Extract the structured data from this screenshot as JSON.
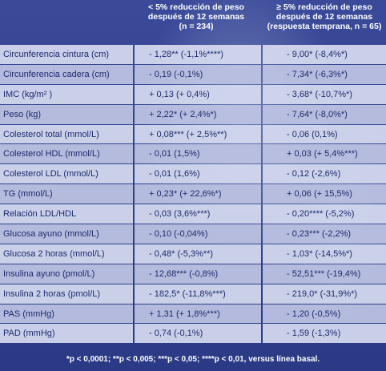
{
  "header": {
    "col1_line1": "< 5% reducción de peso",
    "col1_line2": "después de 12 semanas",
    "col1_line3": "(n = 234)",
    "col2_line1": "≥ 5% reducción de peso",
    "col2_line2": "después de 12 semanas",
    "col2_line3": "(respuesta temprana, n = 65)"
  },
  "rows": [
    {
      "label": "Circunferencia cintura (cm)",
      "v1": "- 1,28** (-1,1%****)",
      "v2": "- 9,00* (-8,4%*)"
    },
    {
      "label": "Circunferencia cadera (cm)",
      "v1": "- 0,19 (-0,1%)",
      "v2": "- 7,34* (-6,3%*)"
    },
    {
      "label": "IMC (kg/m² )",
      "v1": "+ 0,13 (+ 0,4%)",
      "v2": "- 3,68* (-10,7%*)"
    },
    {
      "label": "Peso (kg)",
      "v1": "+ 2,22* (+ 2,4%*)",
      "v2": "- 7,64* (-8,0%*)"
    },
    {
      "label": "Colesterol total (mmol/L)",
      "v1": "+ 0,08*** (+ 2,5%**)",
      "v2": "- 0,06 (0,1%)"
    },
    {
      "label": "Colesterol HDL (mmol/L)",
      "v1": "- 0,01 (1,5%)",
      "v2": "+ 0,03 (+ 5,4%***)"
    },
    {
      "label": "Colesterol LDL (mmol/L)",
      "v1": "- 0,01 (1,6%)",
      "v2": "- 0,12 (-2,6%)"
    },
    {
      "label": "TG (mmol/L)",
      "v1": "+ 0,23* (+ 22,6%*)",
      "v2": "+ 0,06 (+ 15,5%)"
    },
    {
      "label": "Relación LDL/HDL",
      "v1": "- 0,03 (3,6%***)",
      "v2": "- 0,20**** (-5,2%)"
    },
    {
      "label": "Glucosa ayuno (mmol/L)",
      "v1": "- 0,10 (-0,04%)",
      "v2": "- 0,23*** (-2,2%)"
    },
    {
      "label": "Glucosa 2 horas (mmol/L)",
      "v1": "- 0,48* (-5,3%**)",
      "v2": "- 1,03* (-14,5%*)"
    },
    {
      "label": "Insulina ayuno (pmol/L)",
      "v1": "- 12,68*** (-0,8%)",
      "v2": "- 52,51*** (-19,4%)"
    },
    {
      "label": "Insulina 2 horas (pmol/L)",
      "v1": "- 182,5* (-11,8%***)",
      "v2": "- 219,0* (-31,9%*)"
    },
    {
      "label": "PAS (mmHg)",
      "v1": "+ 1,31 (+ 1,8%***)",
      "v2": "- 1,20 (-0,5%)"
    },
    {
      "label": "PAD (mmHg)",
      "v1": "- 0,74 (-0,1%)",
      "v2": "- 1,59 (-1,3%)"
    }
  ],
  "footnote": "*p < 0,0001; **p < 0,005; ***p < 0,05; ****p < 0,01, versus línea basal."
}
